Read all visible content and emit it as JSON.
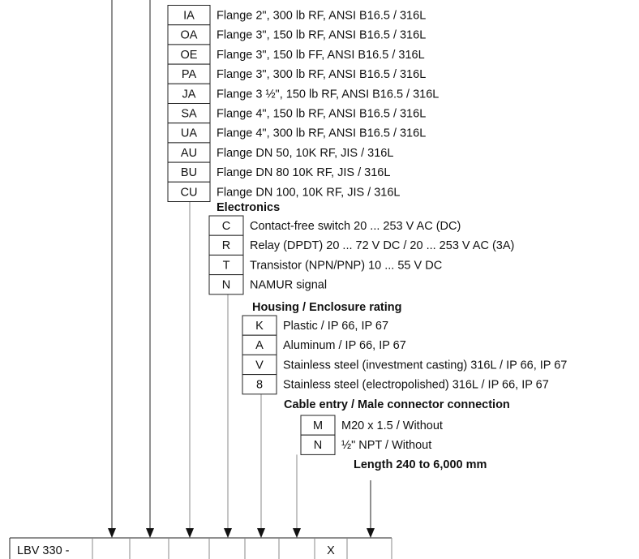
{
  "groups": [
    {
      "heading": "",
      "options": [
        {
          "code": "IA",
          "desc": "Flange 2\", 300 lb RF, ANSI B16.5 / 316L"
        },
        {
          "code": "OA",
          "desc": "Flange 3\", 150 lb RF, ANSI B16.5 / 316L"
        },
        {
          "code": "OE",
          "desc": "Flange 3\", 150 lb FF, ANSI B16.5 / 316L"
        },
        {
          "code": "PA",
          "desc": "Flange 3\", 300 lb RF, ANSI B16.5 / 316L"
        },
        {
          "code": "JA",
          "desc": "Flange 3 ½\", 150 lb RF, ANSI B16.5 / 316L"
        },
        {
          "code": "SA",
          "desc": "Flange 4\", 150 lb RF, ANSI B16.5 / 316L"
        },
        {
          "code": "UA",
          "desc": "Flange 4\", 300 lb RF, ANSI B16.5 / 316L"
        },
        {
          "code": "AU",
          "desc": "Flange DN 50, 10K RF, JIS / 316L"
        },
        {
          "code": "BU",
          "desc": "Flange DN 80 10K RF, JIS / 316L"
        },
        {
          "code": "CU",
          "desc": "Flange DN 100, 10K RF, JIS / 316L"
        }
      ]
    },
    {
      "heading": "Electronics",
      "options": [
        {
          "code": "C",
          "desc": "Contact-free switch 20 ... 253 V AC (DC)"
        },
        {
          "code": "R",
          "desc": "Relay (DPDT) 20 ... 72 V DC / 20 ... 253 V AC (3A)"
        },
        {
          "code": "T",
          "desc": "Transistor (NPN/PNP) 10 ... 55 V DC"
        },
        {
          "code": "N",
          "desc": "NAMUR signal"
        }
      ]
    },
    {
      "heading": "Housing / Enclosure rating",
      "options": [
        {
          "code": "K",
          "desc": "Plastic / IP 66, IP 67"
        },
        {
          "code": "A",
          "desc": "Aluminum / IP 66, IP 67"
        },
        {
          "code": "V",
          "desc": "Stainless steel (investment casting) 316L / IP 66, IP 67"
        },
        {
          "code": "8",
          "desc": "Stainless steel (electropolished) 316L / IP 66, IP 67"
        }
      ]
    },
    {
      "heading": "Cable entry / Male connector connection",
      "options": [
        {
          "code": "M",
          "desc": "M20 x 1.5 / Without"
        },
        {
          "code": "N",
          "desc": "½\" NPT / Without"
        }
      ]
    }
  ],
  "length_label": "Length 240 to 6,000 mm",
  "type_code": {
    "prefix": "LBV 330 -",
    "cells": [
      "",
      "",
      "",
      "",
      "",
      "",
      "X",
      ""
    ]
  }
}
